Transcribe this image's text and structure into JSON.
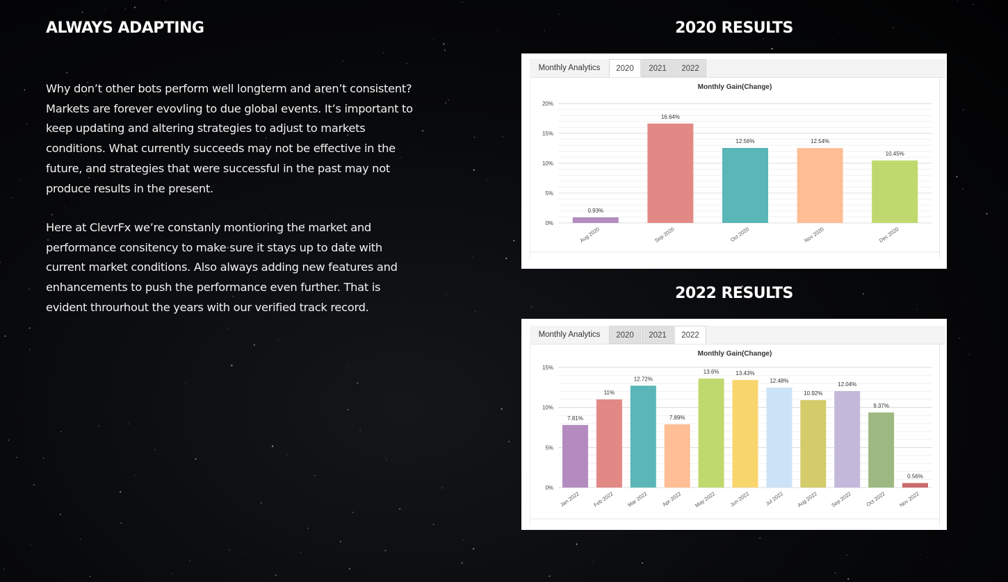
{
  "left": {
    "heading": "ALWAYS ADAPTING",
    "paragraph1": "Why don’t other bots perform well longterm and aren’t consistent? Markets are forever evovling to due global events. It’s important to keep updating and altering strategies to adjust to markets conditions. What currently succeeds may not be effective in the future, and strategies that were successful in the past may not produce results in the present.",
    "paragraph2": "Here at ClevrFx we’re constanly montioring the market and performance consitency to make sure it stays up to date with current market conditions. Also always adding new features and enhancements to push the performance even further. That is evident throurhout the years with our verified track record."
  },
  "section2020": {
    "title": "2020 RESULTS",
    "tabs": {
      "label": "Monthly Analytics",
      "y2020": "2020",
      "y2021": "2021",
      "y2022": "2022",
      "active": "2020"
    }
  },
  "section2022": {
    "title": "2022 RESULTS",
    "tabs": {
      "label": "Monthly Analytics",
      "y2020": "2020",
      "y2021": "2021",
      "y2022": "2022",
      "active": "2022"
    }
  },
  "chart_data": [
    {
      "type": "bar",
      "title": "Monthly Gain(Change)",
      "xlabel": "",
      "ylabel": "",
      "ylim": [
        0,
        20
      ],
      "yticks": [
        "0%",
        "5%",
        "10%",
        "15%",
        "20%"
      ],
      "yticks_values": [
        0,
        5,
        10,
        15,
        20
      ],
      "grid": true,
      "categories": [
        "Aug 2020",
        "Sep 2020",
        "Oct 2020",
        "Nov 2020",
        "Dec 2020"
      ],
      "values": [
        0.93,
        16.64,
        12.56,
        12.54,
        10.45
      ],
      "labels": [
        "0.93%",
        "16.64%",
        "12.56%",
        "12.54%",
        "10.45%"
      ],
      "colors": [
        "#b38bbf",
        "#e28986",
        "#5ab6b7",
        "#ffbe94",
        "#bfd96e"
      ]
    },
    {
      "type": "bar",
      "title": "Monthly Gain(Change)",
      "xlabel": "",
      "ylabel": "",
      "ylim": [
        0,
        15
      ],
      "yticks": [
        "0%",
        "5%",
        "10%",
        "15%"
      ],
      "yticks_values": [
        0,
        5,
        10,
        15
      ],
      "grid": true,
      "categories": [
        "Jan 2022",
        "Feb 2022",
        "Mar 2022",
        "Apr 2022",
        "May 2022",
        "Jun 2022",
        "Jul 2022",
        "Aug 2022",
        "Sep 2022",
        "Oct 2022",
        "Nov 2022"
      ],
      "values": [
        7.81,
        11,
        12.72,
        7.89,
        13.6,
        13.43,
        12.48,
        10.92,
        12.04,
        9.37,
        0.56
      ],
      "labels": [
        "7.81%",
        "11%",
        "12.72%",
        "7.89%",
        "13.6%",
        "13.43%",
        "12.48%",
        "10.92%",
        "12.04%",
        "9.37%",
        "0.56%"
      ],
      "colors": [
        "#b38bbf",
        "#e28986",
        "#5ab6b7",
        "#ffbe94",
        "#bfd96e",
        "#f9d56e",
        "#cce3f7",
        "#d4cc6a",
        "#c4b8da",
        "#9eb882",
        "#c96b6b"
      ]
    }
  ]
}
